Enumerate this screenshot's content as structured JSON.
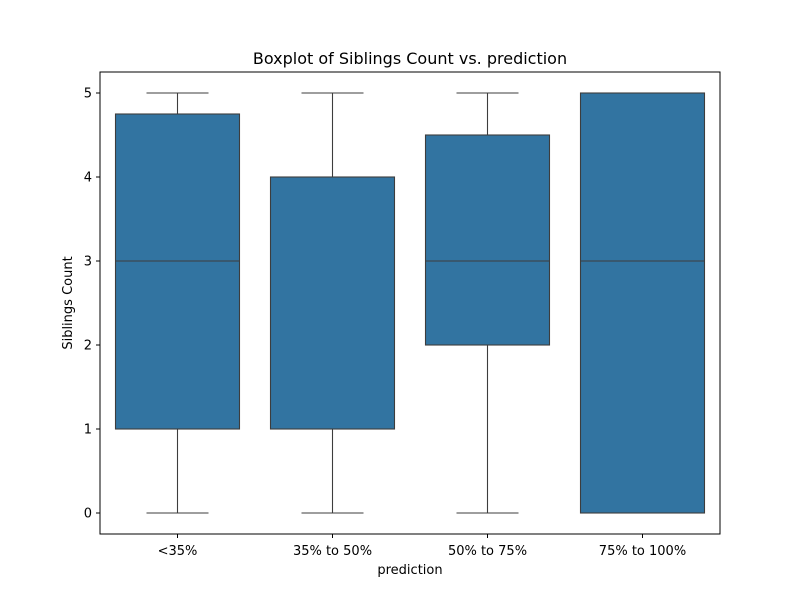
{
  "chart_data": {
    "type": "boxplot",
    "title": "Boxplot of Siblings Count vs. prediction",
    "xlabel": "prediction",
    "ylabel": "Siblings Count",
    "ylim": [
      -0.25,
      5.25
    ],
    "yticks": [
      0,
      1,
      2,
      3,
      4,
      5
    ],
    "categories": [
      "<35%",
      "35% to 50%",
      "50% to 75%",
      "75% to 100%"
    ],
    "boxes": [
      {
        "whisker_low": 0,
        "q1": 1,
        "median": 3,
        "q3": 4.75,
        "whisker_high": 5
      },
      {
        "whisker_low": 0,
        "q1": 1,
        "median": 4,
        "q3": 4,
        "whisker_high": 5
      },
      {
        "whisker_low": 0,
        "q1": 2,
        "median": 3,
        "q3": 4.5,
        "whisker_high": 5
      },
      {
        "whisker_low": 0,
        "q1": 0,
        "median": 3,
        "q3": 5,
        "whisker_high": 5
      }
    ],
    "box_color": "#3274a1",
    "line_color": "#3d3d3d",
    "grid": false,
    "legend": "none"
  }
}
